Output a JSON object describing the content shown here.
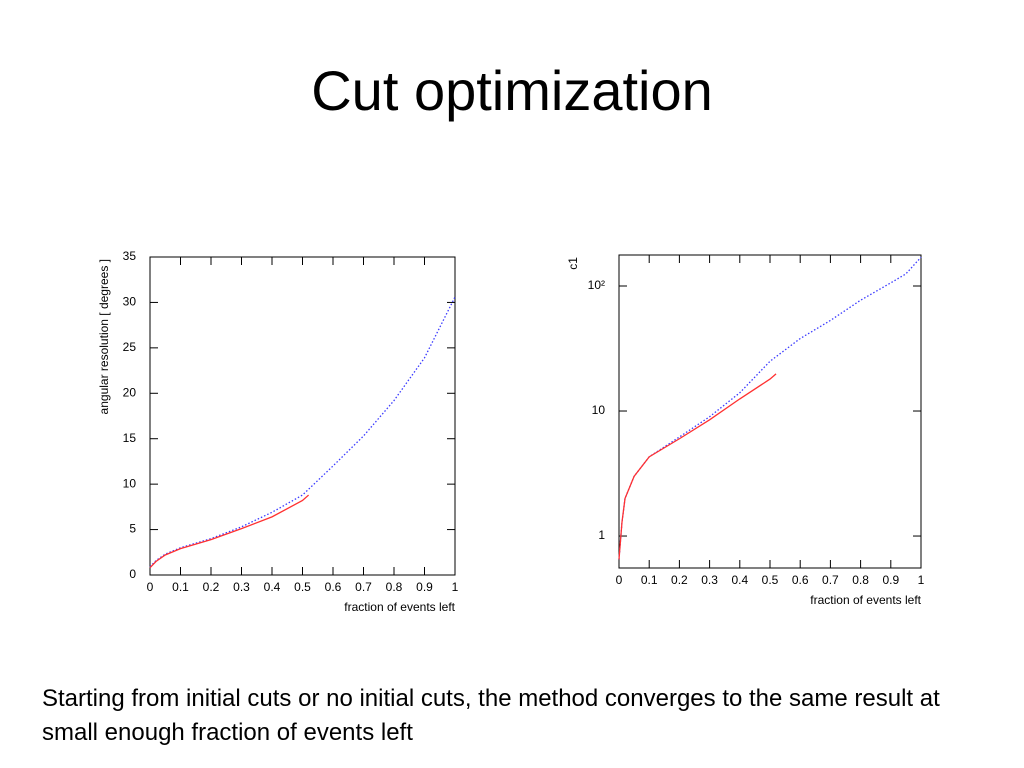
{
  "title": "Cut optimization",
  "caption": "Starting from initial cuts or no initial cuts, the method converges to the same result at small enough fraction of events left",
  "chart_data": [
    {
      "type": "line",
      "ylabel": "angular resolution [ degrees ]",
      "xlabel": "fraction of events left",
      "xlim": [
        0,
        1
      ],
      "ylim": [
        0,
        35
      ],
      "xticks": [
        0,
        0.1,
        0.2,
        0.3,
        0.4,
        0.5,
        0.6,
        0.7,
        0.8,
        0.9,
        1
      ],
      "yticks": [
        0,
        5,
        10,
        15,
        20,
        25,
        30,
        35
      ],
      "series": [
        {
          "color": "#3a3aff",
          "line_style": "dotted",
          "x": [
            0,
            0.02,
            0.05,
            0.1,
            0.2,
            0.3,
            0.4,
            0.5,
            0.6,
            0.7,
            0.8,
            0.9,
            1
          ],
          "values": [
            0.9,
            1.6,
            2.3,
            3,
            4,
            5.3,
            6.9,
            8.8,
            12,
            15.3,
            19.2,
            23.9,
            30.6
          ]
        },
        {
          "color": "#ff3030",
          "line_style": "solid",
          "x": [
            0,
            0.02,
            0.05,
            0.1,
            0.2,
            0.3,
            0.4,
            0.5,
            0.52
          ],
          "values": [
            0.8,
            1.5,
            2.2,
            2.9,
            3.9,
            5.1,
            6.4,
            8.2,
            8.8
          ]
        }
      ]
    },
    {
      "type": "line",
      "ylabel": "c1",
      "xlabel": "fraction of events left",
      "yscale": "log",
      "xlim": [
        0,
        1
      ],
      "ylim": [
        0.555,
        177
      ],
      "xticks": [
        0,
        0.1,
        0.2,
        0.3,
        0.4,
        0.5,
        0.6,
        0.7,
        0.8,
        0.9,
        1
      ],
      "yticks": [
        1,
        10,
        {
          "value": 100,
          "label": "10²"
        }
      ],
      "series": [
        {
          "color": "#3a3aff",
          "line_style": "dotted",
          "x": [
            0,
            0.01,
            0.02,
            0.05,
            0.1,
            0.2,
            0.3,
            0.4,
            0.5,
            0.6,
            0.7,
            0.8,
            0.9,
            0.95,
            1
          ],
          "values": [
            0.65,
            1.3,
            2,
            3,
            4.3,
            6.2,
            9,
            14,
            25,
            38,
            53,
            77,
            106,
            125,
            170
          ]
        },
        {
          "color": "#ff3030",
          "line_style": "solid",
          "x": [
            0,
            0.01,
            0.02,
            0.05,
            0.1,
            0.2,
            0.3,
            0.4,
            0.5,
            0.52
          ],
          "values": [
            0.65,
            1.3,
            2,
            3,
            4.3,
            6,
            8.5,
            12.5,
            18,
            19.8
          ]
        }
      ]
    }
  ]
}
